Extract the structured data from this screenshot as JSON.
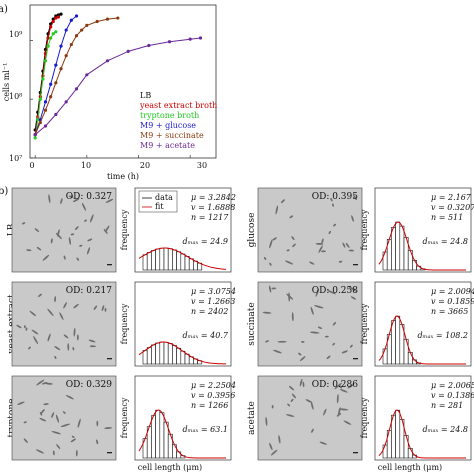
{
  "panel_a": {
    "label": "a)",
    "ylabel": "cells ml⁻¹",
    "xlabel": "time (h)",
    "yticks": [
      "10⁹",
      "10⁸",
      "10⁷"
    ],
    "xticks": [
      "0",
      "10",
      "20",
      "30"
    ],
    "legend": [
      {
        "label": "LB",
        "color": "#000000"
      },
      {
        "label": "yeast extract broth",
        "color": "#cc0000"
      },
      {
        "label": "tryptone broth",
        "color": "#22cc22"
      },
      {
        "label": "M9 + glucose",
        "color": "#1a1acc"
      },
      {
        "label": "M9 + succinate",
        "color": "#8b3a10"
      },
      {
        "label": "M9 + acetate",
        "color": "#6a2a9a"
      }
    ]
  },
  "panel_b": {
    "label": "b)",
    "legend_data": "data",
    "legend_fit": "fit",
    "freq_label": "frequency",
    "xlabel": "cell length (μm)",
    "rows": [
      {
        "name": "LB",
        "od": "OD: 0.327",
        "mu": "μ = 3.2842",
        "nu": "v = 1.6888",
        "n": "n = 1217",
        "dmax": "dₘₐₓ = 24.9"
      },
      {
        "name": "yeast extract",
        "od": "OD: 0.217",
        "mu": "μ = 3.0754",
        "nu": "v = 1.2663",
        "n": "n = 2402",
        "dmax": "dₘₐₓ = 40.7"
      },
      {
        "name": "tryptone",
        "od": "OD: 0.329",
        "mu": "μ = 2.2504",
        "nu": "v = 0.3956",
        "n": "n = 1266",
        "dmax": "dₘₐₓ = 63.1"
      },
      {
        "name": "glucose",
        "od": "OD: 0.395",
        "mu": "μ = 2.167",
        "nu": "v = 0.3207",
        "n": "n = 511",
        "dmax": "dₘₐₓ = 24.8"
      },
      {
        "name": "succinate",
        "od": "OD: 0.258",
        "mu": "μ = 2.0094",
        "nu": "v = 0.1859",
        "n": "n = 3665",
        "dmax": "dₘₐₓ = 108.2"
      },
      {
        "name": "acetate",
        "od": "OD: 0.286",
        "mu": "μ = 2.0065",
        "nu": "v = 0.1386",
        "n": "n = 281",
        "dmax": "dₘₐₓ = 24.8"
      }
    ]
  },
  "chart_data": {
    "type": "line",
    "xlabel": "time (h)",
    "ylabel": "cells ml⁻¹",
    "y_scale": "log",
    "xlim": [
      -1,
      35
    ],
    "ylim": [
      10000000,
      4000000000
    ],
    "legend_position": "bottom-right",
    "series": [
      {
        "name": "LB",
        "color": "#000000",
        "x": [
          0,
          0.5,
          1,
          1.5,
          2,
          2.5,
          3,
          3.5,
          4,
          4.5,
          5
        ],
        "y": [
          30000000,
          60000000,
          130000000,
          300000000,
          700000000,
          1300000000,
          1900000000,
          2300000000,
          2600000000,
          2700000000,
          2800000000
        ]
      },
      {
        "name": "yeast extract broth",
        "color": "#cc0000",
        "x": [
          0,
          0.5,
          1,
          1.5,
          2,
          2.5,
          3,
          3.5,
          4,
          4.5
        ],
        "y": [
          25000000,
          50000000,
          110000000,
          250000000,
          600000000,
          1100000000,
          1700000000,
          2100000000,
          2400000000,
          2500000000
        ]
      },
      {
        "name": "tryptone broth",
        "color": "#22cc22",
        "x": [
          0,
          0.5,
          1,
          1.5,
          2,
          2.5,
          3,
          3.5,
          4
        ],
        "y": [
          22000000,
          45000000,
          100000000,
          220000000,
          450000000,
          800000000,
          1100000000,
          1300000000,
          1400000000
        ]
      },
      {
        "name": "M9 + glucose",
        "color": "#1a1acc",
        "x": [
          0,
          1,
          2,
          3,
          4,
          5,
          6,
          7,
          8
        ],
        "y": [
          25000000,
          45000000,
          90000000,
          180000000,
          380000000,
          800000000,
          1500000000,
          2200000000,
          2600000000
        ]
      },
      {
        "name": "M9 + succinate",
        "color": "#8b3a10",
        "x": [
          0,
          1,
          2,
          3,
          4,
          5,
          6,
          7,
          8,
          9,
          10,
          12,
          14,
          16
        ],
        "y": [
          25000000,
          40000000,
          65000000,
          110000000,
          190000000,
          330000000,
          550000000,
          850000000,
          1200000000,
          1500000000,
          1800000000,
          2100000000,
          2300000000,
          2400000000
        ]
      },
      {
        "name": "M9 + acetate",
        "color": "#6a2a9a",
        "x": [
          0,
          2,
          4,
          6,
          8,
          10,
          14,
          18,
          22,
          26,
          30,
          32
        ],
        "y": [
          25000000,
          35000000,
          55000000,
          90000000,
          150000000,
          260000000,
          450000000,
          650000000,
          820000000,
          950000000,
          1050000000,
          1100000000
        ]
      }
    ]
  }
}
